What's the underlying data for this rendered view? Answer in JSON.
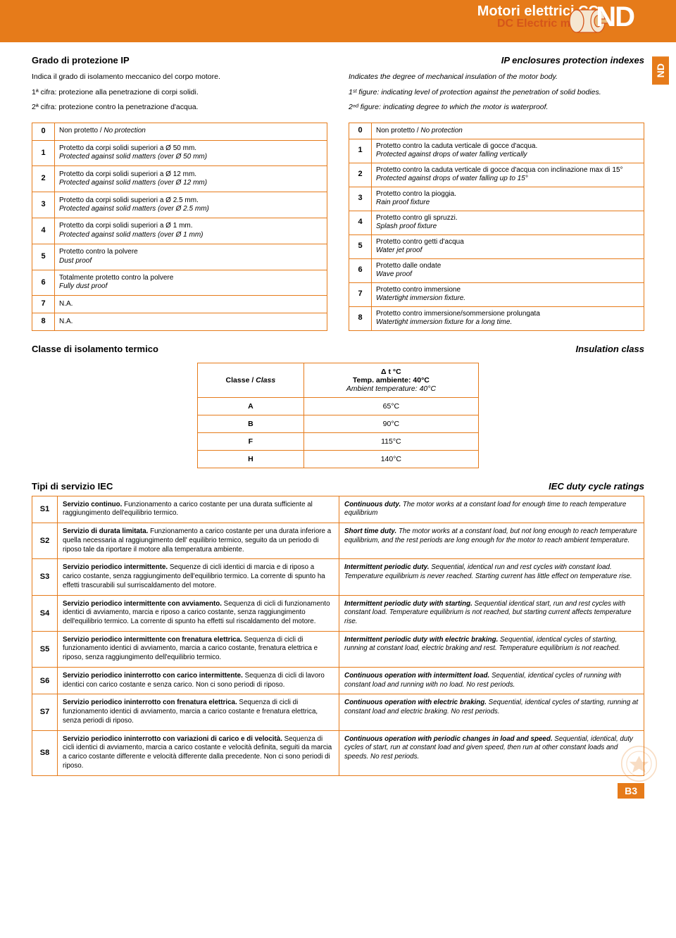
{
  "header": {
    "title": "Motori elettrici CC",
    "subtitle": "DC Electric motors",
    "badge": "ND",
    "side_tab": "ND"
  },
  "ip_section": {
    "title_it": "Grado di protezione IP",
    "title_en": "IP enclosures protection indexes",
    "intro_it": [
      "Indica il grado di isolamento meccanico del corpo motore.",
      "1ª cifra: protezione alla penetrazione di corpi solidi.",
      "2ª cifra: protezione contro la penetrazione d'acqua."
    ],
    "intro_en": [
      "Indicates the degree of mechanical insulation of the motor body.",
      "1ˢᵗ figure: indicating level of protection against the penetration of solid bodies.",
      "2ⁿᵈ figure: indicating degree to which the motor is waterproof."
    ],
    "left_rows": [
      {
        "n": "0",
        "it": "Non protetto /",
        "en": "No protection",
        "inline": true
      },
      {
        "n": "1",
        "it": "Protetto da corpi solidi superiori a Ø 50 mm.",
        "en": "Protected against solid matters (over Ø 50 mm)"
      },
      {
        "n": "2",
        "it": "Protetto da corpi solidi superiori a Ø 12 mm.",
        "en": "Protected against solid matters (over  Ø 12 mm)"
      },
      {
        "n": "3",
        "it": "Protetto da corpi solidi superiori a Ø 2.5 mm.",
        "en": "Protected against solid matters (over Ø 2.5 mm)"
      },
      {
        "n": "4",
        "it": "Protetto da corpi solidi superiori a Ø 1 mm.",
        "en": "Protected against solid matters (over Ø 1 mm)"
      },
      {
        "n": "5",
        "it": "Protetto contro la polvere",
        "en": "Dust proof"
      },
      {
        "n": "6",
        "it": "Totalmente protetto contro la polvere",
        "en": "Fully dust proof"
      },
      {
        "n": "7",
        "it": "N.A.",
        "en": ""
      },
      {
        "n": "8",
        "it": "N.A.",
        "en": ""
      }
    ],
    "right_rows": [
      {
        "n": "0",
        "it": "Non protetto /",
        "en": "No protection",
        "inline": true
      },
      {
        "n": "1",
        "it": "Protetto contro la caduta verticale di gocce d'acqua.",
        "en": "Protected against drops of water falling vertically"
      },
      {
        "n": "2",
        "it": "Protetto contro la caduta verticale di gocce d'acqua con inclinazione max di 15°",
        "en": "Protected against drops of water falling up to 15°"
      },
      {
        "n": "3",
        "it": "Protetto contro la pioggia.",
        "en": "Rain proof fixture"
      },
      {
        "n": "4",
        "it": "Protetto contro gli spruzzi.",
        "en": "Splash proof fixture"
      },
      {
        "n": "5",
        "it": "Protetto contro getti d'acqua",
        "en": "Water jet proof"
      },
      {
        "n": "6",
        "it": "Protetto dalle ondate",
        "en": "Wave proof"
      },
      {
        "n": "7",
        "it": "Protetto contro immersione",
        "en": "Watertight immersion fixture."
      },
      {
        "n": "8",
        "it": "Protetto contro immersione/sommersione prolungata",
        "en": "Watertight immersion fixture for a long time."
      }
    ]
  },
  "class_section": {
    "title_it": "Classe di isolamento termico",
    "title_en": "Insulation class",
    "col1": "Classe / Class",
    "col2_line1": "Δ t °C",
    "col2_line2": "Temp. ambiente: 40°C",
    "col2_line3": "Ambient temperature: 40°C",
    "rows": [
      {
        "c": "A",
        "v": "65°C"
      },
      {
        "c": "B",
        "v": "90°C"
      },
      {
        "c": "F",
        "v": "115°C"
      },
      {
        "c": "H",
        "v": "140°C"
      }
    ]
  },
  "duty_section": {
    "title_it": "Tipi di servizio IEC",
    "title_en": "IEC duty cycle ratings",
    "rows": [
      {
        "s": "S1",
        "it_b": "Servizio continuo.",
        "it": " Funzionamento a carico costante per una durata sufficiente al raggiungimento dell'equilibrio termico.",
        "en_b": "Continuous duty.",
        "en": " The motor works at a constant load for enough time to reach temperature equilibrium"
      },
      {
        "s": "S2",
        "it_b": "Servizio di durata limitata.",
        "it": " Funzionamento a carico costante per una durata inferiore a quella necessaria al raggiungimento dell' equilibrio termico, seguito da un periodo di riposo tale da riportare il motore alla temperatura ambiente.",
        "en_b": "Short time duty.",
        "en": " The motor works at a constant load, but not long enough to reach temperature equilibrium, and the rest periods are long enough for the motor to reach ambient temperature."
      },
      {
        "s": "S3",
        "it_b": "Servizio periodico intermittente.",
        "it": " Sequenze di cicli identici di marcia e di riposo a carico costante, senza raggiungimento dell'equilibrio termico. La corrente di spunto ha effetti trascurabili sul surriscaldamento del motore.",
        "en_b": "Intermittent periodic duty.",
        "en": " Sequential, identical run and rest cycles with constant load. Temperature equilibrium is never reached. Starting current has little effect on temperature rise."
      },
      {
        "s": "S4",
        "it_b": "Servizio periodico intermittente con avviamento.",
        "it": " Sequenza di cicli di funzionamento identici di avviamento, marcia e riposo a carico costante, senza raggiungimento dell'equilibrio termico. La corrente di spunto ha effetti sul riscaldamento del motore.",
        "en_b": "Intermittent periodic duty with starting.",
        "en": " Sequential identical start, run and rest cycles with constant load. Temperature equilibrium is not reached, but starting current affects temperature rise."
      },
      {
        "s": "S5",
        "it_b": "Servizio periodico intermittente con frenatura elettrica.",
        "it": " Sequenza di cicli di funzionamento identici di avviamento, marcia a carico costante, frenatura elettrica e riposo, senza raggiungimento dell'equilibrio termico.",
        "en_b": "Intermittent periodic duty with electric braking.",
        "en": " Sequential, identical cycles of starting, running at constant load, electric braking and rest. Temperature equilibrium is not reached."
      },
      {
        "s": "S6",
        "it_b": "Servizio periodico ininterrotto con carico intermittente.",
        "it": " Sequenza di cicli di lavoro identici con carico costante  e senza carico. Non ci sono periodi di riposo.",
        "en_b": "Continuous operation with intermittent load.",
        "en": " Sequential, identical cycles of running with constant load and running with no load. No rest periods."
      },
      {
        "s": "S7",
        "it_b": "Servizio periodico ininterrotto con frenatura elettrica.",
        "it": " Sequenza di cicli di funzionamento identici di avviamento, marcia a carico costante e frenatura elettrica, senza periodi di riposo.",
        "en_b": "Continuous operation with electric braking.",
        "en": " Sequential, identical cycles of starting, running at constant load and electric braking. No rest periods."
      },
      {
        "s": "S8",
        "it_b": "Servizio periodico ininterrotto con variazioni di carico e di velocità.",
        "it": " Sequenza di cicli identici di avviamento, marcia a carico costante e velocità definita, seguiti da marcia a carico costante differente e velocità differente dalla precedente. Non ci sono periodi di riposo.",
        "en_b": "Continuous operation with periodic changes in load and speed.",
        "en": " Sequential, identical, duty cycles of start, run at constant load and given speed, then run at other constant loads and speeds. No rest periods."
      }
    ]
  },
  "page_num": "B3"
}
